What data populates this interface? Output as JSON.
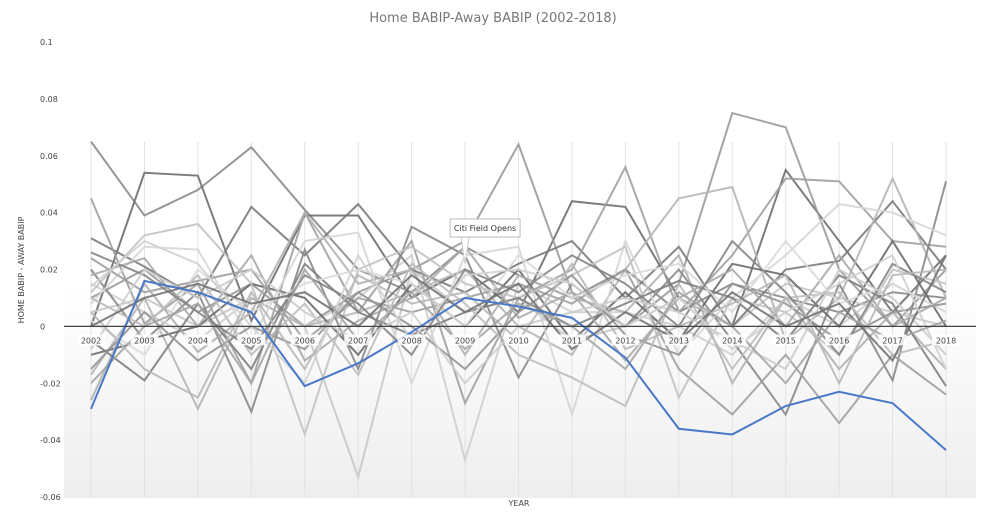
{
  "chart_data": {
    "type": "line",
    "title": "Home BABIP-Away BABIP (2002-2018)",
    "xlabel": "YEAR",
    "ylabel": "HOME BABIP - AWAY BABIP",
    "ylim": [
      -0.06,
      0.1
    ],
    "yticks": [
      "0.1",
      "0.08",
      "0.06",
      "0.04",
      "0.02",
      "0",
      "-0.02",
      "-0.04",
      "-0.06"
    ],
    "ytick_values": [
      0.1,
      0.08,
      0.06,
      0.04,
      0.02,
      0,
      -0.02,
      -0.04,
      -0.06
    ],
    "categories": [
      "2002",
      "2003",
      "2004",
      "2005",
      "2006",
      "2007",
      "2008",
      "2009",
      "2010",
      "2011",
      "2012",
      "2013",
      "2014",
      "2015",
      "2016",
      "2017",
      "2018"
    ],
    "grid": "vertical",
    "highlight_color": "#4a78c8",
    "annotation": {
      "text": "Citi Field Opens",
      "category": "2009",
      "value": 0.022
    },
    "highlight_series": {
      "values": [
        -0.029,
        0.016,
        0.012,
        0.005,
        -0.021,
        -0.013,
        -0.002,
        0.01,
        0.007,
        0.003,
        -0.011,
        -0.036,
        -0.038,
        -0.028,
        -0.023,
        -0.027,
        -0.0435
      ]
    },
    "series": [
      {
        "color": "#8a8a8a",
        "values": [
          0.065,
          0.039,
          0.048,
          0.063,
          0.041,
          0.02,
          0.012,
          0.028,
          0.018,
          0.01,
          0.02,
          0.005,
          0.015,
          0.01,
          0.005,
          0.012,
          0.01
        ]
      },
      {
        "color": "#6e6e6e",
        "values": [
          0.0,
          0.054,
          0.053,
          0.002,
          0.039,
          0.039,
          0.01,
          0.02,
          0.005,
          0.044,
          0.042,
          0.01,
          0.0,
          0.055,
          0.03,
          0.005,
          0.025
        ]
      },
      {
        "color": "#9a9a9a",
        "values": [
          0.01,
          0.02,
          0.005,
          0.015,
          0.0,
          0.012,
          0.02,
          0.03,
          0.064,
          0.012,
          0.0,
          0.015,
          0.075,
          0.07,
          0.02,
          0.0,
          0.02
        ]
      },
      {
        "color": "#c8c8c8",
        "values": [
          0.005,
          0.01,
          0.0,
          0.01,
          0.0,
          -0.053,
          0.02,
          0.005,
          0.01,
          -0.005,
          0.0,
          0.01,
          0.0,
          0.015,
          0.01,
          0.005,
          0.0
        ]
      },
      {
        "color": "#cfcfcf",
        "values": [
          0.015,
          0.005,
          -0.005,
          0.01,
          0.0,
          0.01,
          0.025,
          -0.047,
          0.015,
          0.005,
          0.005,
          0.0,
          -0.01,
          0.01,
          0.0,
          0.015,
          0.005
        ]
      },
      {
        "color": "#7a7a7a",
        "values": [
          0.031,
          0.021,
          0.01,
          0.042,
          0.025,
          0.043,
          0.02,
          0.012,
          0.022,
          0.03,
          0.01,
          0.028,
          0.0,
          0.02,
          0.023,
          0.044,
          0.02
        ]
      },
      {
        "color": "#a0a0a0",
        "values": [
          0.045,
          0.001,
          0.015,
          -0.02,
          0.04,
          0.005,
          0.03,
          -0.027,
          0.01,
          0.02,
          0.056,
          0.005,
          0.025,
          0.052,
          0.051,
          0.03,
          0.028
        ]
      },
      {
        "color": "#b5b5b5",
        "values": [
          -0.017,
          0.01,
          -0.029,
          0.01,
          0.0,
          0.005,
          0.012,
          0.02,
          0.0,
          -0.01,
          0.02,
          0.045,
          0.049,
          -0.005,
          0.01,
          0.052,
          0.01
        ]
      },
      {
        "color": "#888888",
        "values": [
          0.02,
          -0.005,
          0.012,
          -0.03,
          0.027,
          -0.015,
          0.035,
          0.025,
          -0.018,
          0.015,
          0.0,
          0.02,
          -0.005,
          -0.031,
          0.015,
          -0.019,
          0.051
        ]
      },
      {
        "color": "#d6d6d6",
        "values": [
          0.008,
          0.028,
          0.027,
          -0.005,
          0.03,
          0.033,
          -0.02,
          0.025,
          0.028,
          -0.031,
          0.03,
          -0.01,
          0.01,
          0.025,
          0.043,
          0.04,
          0.032
        ]
      },
      {
        "color": "#6a6a6a",
        "values": [
          -0.01,
          -0.005,
          0.0,
          0.015,
          0.01,
          -0.01,
          0.015,
          0.0,
          0.02,
          -0.005,
          0.012,
          -0.005,
          0.022,
          0.018,
          0.0,
          0.03,
          0.0
        ]
      },
      {
        "color": "#9e9e9e",
        "values": [
          0.024,
          0.012,
          0.016,
          0.02,
          -0.005,
          0.01,
          0.005,
          0.01,
          0.015,
          0.008,
          0.02,
          -0.015,
          -0.031,
          -0.01,
          -0.034,
          -0.01,
          -0.024
        ]
      },
      {
        "color": "#b0b0b0",
        "values": [
          -0.026,
          0.015,
          -0.009,
          0.005,
          0.04,
          0.015,
          0.02,
          -0.01,
          0.018,
          0.01,
          0.005,
          0.025,
          -0.02,
          0.01,
          -0.015,
          0.005,
          -0.015
        ]
      },
      {
        "color": "#c2c2c2",
        "values": [
          0.012,
          0.032,
          0.036,
          0.015,
          -0.038,
          0.02,
          0.028,
          0.015,
          0.01,
          0.018,
          0.028,
          -0.025,
          0.01,
          0.005,
          -0.01,
          0.02,
          0.015
        ]
      },
      {
        "color": "#7e7e7e",
        "values": [
          -0.005,
          -0.019,
          0.008,
          -0.015,
          0.022,
          0.005,
          -0.003,
          0.005,
          0.01,
          0.0,
          0.008,
          0.016,
          0.01,
          -0.005,
          0.018,
          0.008,
          -0.021
        ]
      },
      {
        "color": "#a8a8a8",
        "values": [
          0.018,
          0.024,
          0.0,
          0.025,
          -0.012,
          0.002,
          0.01,
          0.028,
          0.003,
          0.012,
          -0.012,
          0.01,
          0.02,
          0.0,
          0.025,
          0.0,
          0.01
        ]
      },
      {
        "color": "#dadada",
        "values": [
          0.002,
          -0.01,
          0.02,
          0.005,
          0.015,
          0.02,
          0.015,
          0.0,
          0.025,
          0.01,
          0.018,
          0.022,
          0.005,
          0.03,
          0.008,
          0.015,
          0.005
        ]
      },
      {
        "color": "#949494",
        "values": [
          -0.015,
          0.005,
          -0.012,
          0.0,
          -0.008,
          0.012,
          0.0,
          -0.015,
          0.005,
          0.018,
          -0.003,
          -0.01,
          0.015,
          0.008,
          -0.005,
          0.005,
          0.008
        ]
      },
      {
        "color": "#bdbdbd",
        "values": [
          0.01,
          0.0,
          0.018,
          -0.01,
          0.008,
          -0.017,
          0.022,
          0.008,
          -0.01,
          -0.018,
          -0.028,
          0.015,
          -0.015,
          0.01,
          0.012,
          -0.01,
          -0.005
        ]
      },
      {
        "color": "#858585",
        "values": [
          0.026,
          0.018,
          0.005,
          -0.008,
          0.018,
          0.008,
          -0.01,
          0.02,
          0.012,
          0.025,
          0.015,
          0.0,
          0.03,
          0.012,
          -0.01,
          0.022,
          0.012
        ]
      },
      {
        "color": "#cccccc",
        "values": [
          -0.008,
          0.02,
          0.01,
          0.02,
          0.005,
          -0.005,
          0.005,
          -0.02,
          0.0,
          0.005,
          0.01,
          0.005,
          -0.005,
          -0.015,
          0.02,
          0.01,
          -0.01
        ]
      },
      {
        "color": "#b8b8b8",
        "values": [
          0.005,
          -0.015,
          -0.025,
          0.012,
          -0.015,
          0.018,
          0.008,
          0.012,
          -0.005,
          0.022,
          -0.008,
          0.0,
          0.008,
          0.018,
          -0.02,
          0.018,
          0.02
        ]
      },
      {
        "color": "#737373",
        "values": [
          0.0,
          0.01,
          0.015,
          0.008,
          0.012,
          0.0,
          0.018,
          0.005,
          0.015,
          -0.008,
          0.005,
          -0.005,
          0.012,
          0.0,
          0.008,
          -0.012,
          0.025
        ]
      },
      {
        "color": "#d0d0d0",
        "values": [
          0.014,
          0.03,
          0.022,
          0.0,
          -0.02,
          0.025,
          -0.005,
          0.018,
          0.02,
          0.015,
          0.0,
          0.01,
          -0.008,
          0.005,
          0.015,
          0.025,
          -0.015
        ]
      },
      {
        "color": "#a5a5a5",
        "values": [
          -0.02,
          0.0,
          0.008,
          -0.02,
          0.02,
          -0.005,
          0.012,
          -0.008,
          0.008,
          0.0,
          -0.015,
          0.012,
          0.0,
          -0.02,
          0.005,
          -0.005,
          0.002
        ]
      }
    ]
  }
}
